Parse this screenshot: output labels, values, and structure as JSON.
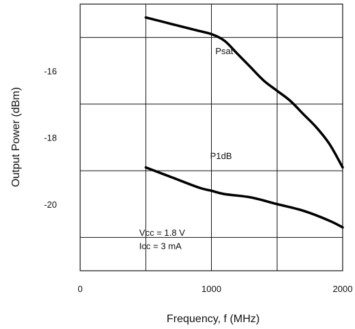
{
  "chart_data": {
    "type": "line",
    "xlabel": "Frequency, f (MHz)",
    "ylabel": "Output Power (dBm)",
    "xlim": [
      0,
      2000
    ],
    "ylim": [
      -22,
      -14
    ],
    "x_ticks": [
      0,
      1000,
      2000
    ],
    "x_tick_labels": [
      "0",
      "1000",
      "2000"
    ],
    "y_ticks": [
      -16,
      -18,
      -20
    ],
    "y_tick_labels": [
      "-16",
      "-18",
      "-20"
    ],
    "grid": true,
    "series": [
      {
        "name": "Psat",
        "x": [
          500,
          700,
          900,
          1000,
          1100,
          1200,
          1300,
          1400,
          1500,
          1600,
          1700,
          1800,
          1900,
          2000
        ],
        "y": [
          -14.4,
          -14.6,
          -14.8,
          -14.9,
          -15.1,
          -15.5,
          -15.9,
          -16.3,
          -16.6,
          -16.9,
          -17.3,
          -17.7,
          -18.2,
          -18.9
        ]
      },
      {
        "name": "P1dB",
        "x": [
          500,
          700,
          900,
          1000,
          1100,
          1300,
          1500,
          1700,
          1900,
          2000
        ],
        "y": [
          -18.9,
          -19.2,
          -19.5,
          -19.6,
          -19.7,
          -19.8,
          -20.0,
          -20.2,
          -20.5,
          -20.7
        ]
      }
    ],
    "annotations": [
      {
        "text": "Psat",
        "x": 1030,
        "y": -15.5
      },
      {
        "text": "P1dB",
        "x": 990,
        "y": -18.65
      },
      {
        "text": "Vcc = 1.8 V",
        "x": 450,
        "y": -20.95
      },
      {
        "text": "Icc = 3 mA",
        "x": 450,
        "y": -21.35
      }
    ]
  }
}
